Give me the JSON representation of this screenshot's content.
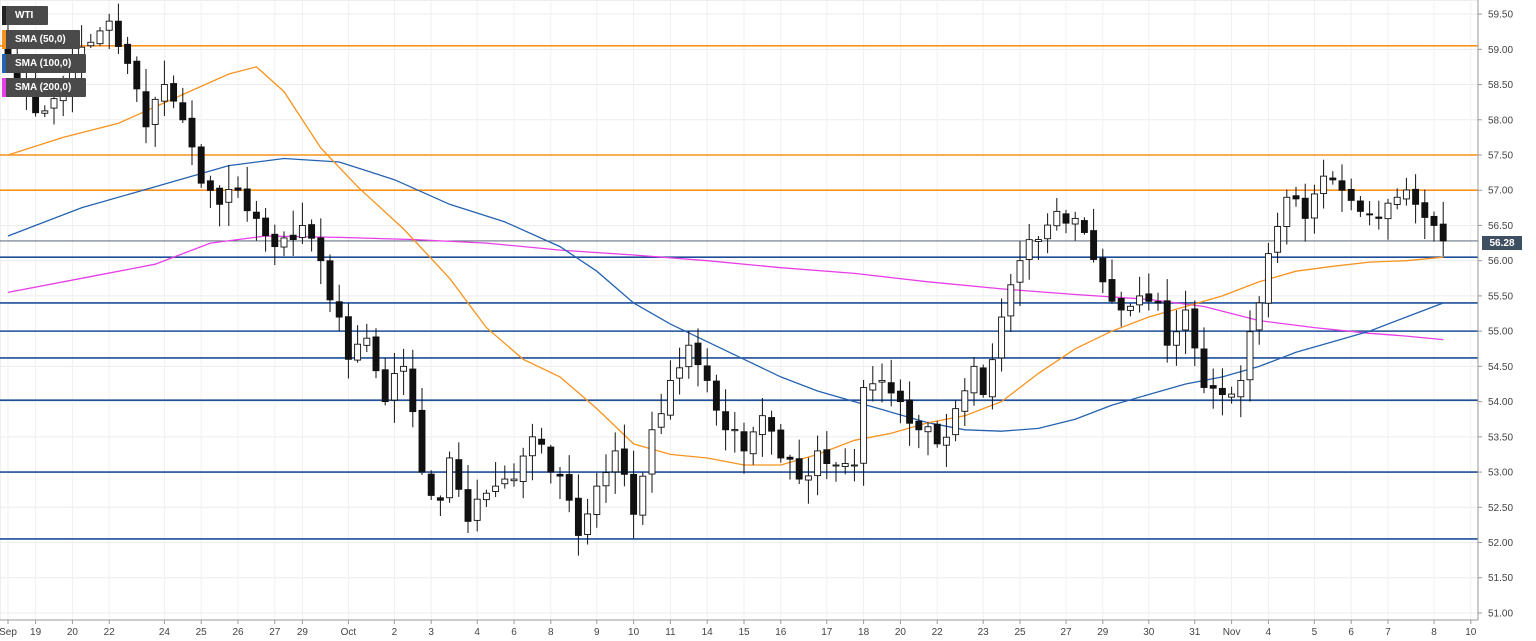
{
  "legend": {
    "symbol": "WTI",
    "sma50": {
      "label": "SMA (50,0)",
      "color": "#f7931e"
    },
    "sma100": {
      "label": "SMA (100,0)",
      "color": "#2563b0"
    },
    "sma200": {
      "label": "SMA (200,0)",
      "color": "#e83ee8"
    }
  },
  "last_price": "56.28",
  "chart_data": {
    "type": "candlestick",
    "title": "",
    "xlabel": "",
    "ylabel": "",
    "ylim": [
      50.9,
      59.7
    ],
    "y_ticks": [
      51.0,
      51.5,
      52.0,
      52.5,
      53.0,
      53.5,
      54.0,
      54.5,
      55.0,
      55.5,
      56.0,
      56.5,
      57.0,
      57.5,
      58.0,
      58.5,
      59.0,
      59.5
    ],
    "x_ticks": [
      {
        "i": 0,
        "label": "Sep"
      },
      {
        "i": 3,
        "label": "19"
      },
      {
        "i": 7,
        "label": "20"
      },
      {
        "i": 11,
        "label": "22"
      },
      {
        "i": 17,
        "label": "24"
      },
      {
        "i": 21,
        "label": "25"
      },
      {
        "i": 25,
        "label": "26"
      },
      {
        "i": 29,
        "label": "27"
      },
      {
        "i": 32,
        "label": "29"
      },
      {
        "i": 37,
        "label": "Oct"
      },
      {
        "i": 42,
        "label": "2"
      },
      {
        "i": 46,
        "label": "3"
      },
      {
        "i": 51,
        "label": "4"
      },
      {
        "i": 55,
        "label": "6"
      },
      {
        "i": 59,
        "label": "8"
      },
      {
        "i": 64,
        "label": "9"
      },
      {
        "i": 68,
        "label": "10"
      },
      {
        "i": 72,
        "label": "11"
      },
      {
        "i": 76,
        "label": "14"
      },
      {
        "i": 80,
        "label": "15"
      },
      {
        "i": 84,
        "label": "16"
      },
      {
        "i": 89,
        "label": "17"
      },
      {
        "i": 93,
        "label": "18"
      },
      {
        "i": 97,
        "label": "20"
      },
      {
        "i": 101,
        "label": "22"
      },
      {
        "i": 106,
        "label": "23"
      },
      {
        "i": 110,
        "label": "25"
      },
      {
        "i": 115,
        "label": "27"
      },
      {
        "i": 119,
        "label": "29"
      },
      {
        "i": 124,
        "label": "30"
      },
      {
        "i": 129,
        "label": "31"
      },
      {
        "i": 133,
        "label": "Nov"
      },
      {
        "i": 137,
        "label": "4"
      },
      {
        "i": 142,
        "label": "5"
      },
      {
        "i": 146,
        "label": "6"
      },
      {
        "i": 150,
        "label": "7"
      },
      {
        "i": 155,
        "label": "8"
      },
      {
        "i": 159,
        "label": "10"
      }
    ],
    "horizontal_levels": [
      {
        "value": 59.05,
        "color": "#f7931e"
      },
      {
        "value": 57.5,
        "color": "#f7931e"
      },
      {
        "value": 57.0,
        "color": "#f7931e"
      },
      {
        "value": 56.05,
        "color": "#1f4e99"
      },
      {
        "value": 55.4,
        "color": "#1f4e99"
      },
      {
        "value": 55.0,
        "color": "#1f4e99"
      },
      {
        "value": 54.62,
        "color": "#1f4e99"
      },
      {
        "value": 54.02,
        "color": "#1f4e99"
      },
      {
        "value": 53.0,
        "color": "#1f4e99"
      },
      {
        "value": 52.05,
        "color": "#1f4e99"
      }
    ],
    "last_price_value": 56.28,
    "close_anchors": [
      [
        0,
        58.9
      ],
      [
        3,
        58.1
      ],
      [
        5,
        58.3
      ],
      [
        7,
        58.8
      ],
      [
        9,
        59.1
      ],
      [
        11,
        59.4
      ],
      [
        13,
        58.8
      ],
      [
        15,
        57.9
      ],
      [
        17,
        58.5
      ],
      [
        19,
        58.0
      ],
      [
        21,
        57.1
      ],
      [
        23,
        56.8
      ],
      [
        25,
        57.0
      ],
      [
        27,
        56.6
      ],
      [
        29,
        56.2
      ],
      [
        31,
        56.3
      ],
      [
        32,
        56.5
      ],
      [
        34,
        56.0
      ],
      [
        36,
        55.2
      ],
      [
        37,
        54.6
      ],
      [
        39,
        54.9
      ],
      [
        41,
        54.0
      ],
      [
        43,
        54.5
      ],
      [
        45,
        53.0
      ],
      [
        47,
        52.6
      ],
      [
        48,
        53.2
      ],
      [
        50,
        52.3
      ],
      [
        53,
        52.8
      ],
      [
        55,
        52.9
      ],
      [
        57,
        53.5
      ],
      [
        59,
        53.0
      ],
      [
        61,
        52.6
      ],
      [
        62,
        52.1
      ],
      [
        64,
        52.8
      ],
      [
        66,
        53.3
      ],
      [
        68,
        52.4
      ],
      [
        70,
        53.6
      ],
      [
        72,
        54.3
      ],
      [
        74,
        54.8
      ],
      [
        76,
        54.3
      ],
      [
        78,
        53.6
      ],
      [
        80,
        53.3
      ],
      [
        82,
        53.8
      ],
      [
        84,
        53.2
      ],
      [
        86,
        52.9
      ],
      [
        88,
        53.3
      ],
      [
        90,
        53.1
      ],
      [
        92,
        53.1
      ],
      [
        93,
        54.2
      ],
      [
        95,
        54.3
      ],
      [
        97,
        54.0
      ],
      [
        99,
        53.6
      ],
      [
        101,
        53.4
      ],
      [
        103,
        53.9
      ],
      [
        105,
        54.5
      ],
      [
        106,
        54.1
      ],
      [
        108,
        55.2
      ],
      [
        110,
        56.0
      ],
      [
        112,
        56.3
      ],
      [
        114,
        56.7
      ],
      [
        116,
        56.6
      ],
      [
        117,
        56.4
      ],
      [
        119,
        55.7
      ],
      [
        121,
        55.3
      ],
      [
        123,
        55.5
      ],
      [
        125,
        55.4
      ],
      [
        126,
        54.8
      ],
      [
        128,
        55.3
      ],
      [
        130,
        54.2
      ],
      [
        132,
        54.1
      ],
      [
        134,
        54.3
      ],
      [
        136,
        55.4
      ],
      [
        137,
        56.1
      ],
      [
        139,
        56.9
      ],
      [
        141,
        56.6
      ],
      [
        143,
        57.2
      ],
      [
        145,
        57.0
      ],
      [
        147,
        56.7
      ],
      [
        149,
        56.6
      ],
      [
        151,
        56.9
      ],
      [
        153,
        56.8
      ],
      [
        155,
        56.5
      ],
      [
        156,
        56.28
      ]
    ],
    "sma50": [
      [
        0,
        57.5
      ],
      [
        6,
        57.75
      ],
      [
        12,
        57.95
      ],
      [
        18,
        58.3
      ],
      [
        24,
        58.65
      ],
      [
        27,
        58.75
      ],
      [
        30,
        58.4
      ],
      [
        34,
        57.6
      ],
      [
        38,
        57.05
      ],
      [
        43,
        56.45
      ],
      [
        48,
        55.75
      ],
      [
        52,
        55.05
      ],
      [
        56,
        54.6
      ],
      [
        60,
        54.35
      ],
      [
        64,
        53.9
      ],
      [
        68,
        53.4
      ],
      [
        72,
        53.25
      ],
      [
        76,
        53.2
      ],
      [
        80,
        53.1
      ],
      [
        84,
        53.1
      ],
      [
        88,
        53.25
      ],
      [
        92,
        53.45
      ],
      [
        96,
        53.55
      ],
      [
        100,
        53.7
      ],
      [
        104,
        53.8
      ],
      [
        108,
        54.0
      ],
      [
        112,
        54.4
      ],
      [
        116,
        54.75
      ],
      [
        120,
        55.0
      ],
      [
        124,
        55.2
      ],
      [
        128,
        55.35
      ],
      [
        132,
        55.5
      ],
      [
        136,
        55.7
      ],
      [
        140,
        55.85
      ],
      [
        144,
        55.92
      ],
      [
        148,
        55.98
      ],
      [
        152,
        56.0
      ],
      [
        156,
        56.05
      ]
    ],
    "sma100": [
      [
        0,
        56.35
      ],
      [
        8,
        56.75
      ],
      [
        16,
        57.05
      ],
      [
        24,
        57.35
      ],
      [
        30,
        57.45
      ],
      [
        36,
        57.4
      ],
      [
        42,
        57.15
      ],
      [
        48,
        56.8
      ],
      [
        54,
        56.55
      ],
      [
        60,
        56.2
      ],
      [
        64,
        55.85
      ],
      [
        68,
        55.4
      ],
      [
        72,
        55.1
      ],
      [
        76,
        54.85
      ],
      [
        80,
        54.6
      ],
      [
        84,
        54.35
      ],
      [
        88,
        54.15
      ],
      [
        92,
        54.0
      ],
      [
        96,
        53.85
      ],
      [
        100,
        53.7
      ],
      [
        104,
        53.6
      ],
      [
        108,
        53.58
      ],
      [
        112,
        53.62
      ],
      [
        116,
        53.75
      ],
      [
        120,
        53.95
      ],
      [
        124,
        54.1
      ],
      [
        128,
        54.25
      ],
      [
        132,
        54.35
      ],
      [
        136,
        54.5
      ],
      [
        140,
        54.7
      ],
      [
        144,
        54.85
      ],
      [
        148,
        55.0
      ],
      [
        152,
        55.2
      ],
      [
        156,
        55.4
      ]
    ],
    "sma200": [
      [
        0,
        55.55
      ],
      [
        8,
        55.75
      ],
      [
        16,
        55.95
      ],
      [
        22,
        56.25
      ],
      [
        28,
        56.35
      ],
      [
        36,
        56.33
      ],
      [
        44,
        56.3
      ],
      [
        52,
        56.25
      ],
      [
        60,
        56.15
      ],
      [
        68,
        56.08
      ],
      [
        76,
        56.0
      ],
      [
        84,
        55.9
      ],
      [
        92,
        55.82
      ],
      [
        100,
        55.7
      ],
      [
        108,
        55.6
      ],
      [
        116,
        55.52
      ],
      [
        124,
        55.45
      ],
      [
        130,
        55.35
      ],
      [
        136,
        55.15
      ],
      [
        142,
        55.05
      ],
      [
        148,
        54.97
      ],
      [
        152,
        54.93
      ],
      [
        156,
        54.88
      ]
    ]
  }
}
